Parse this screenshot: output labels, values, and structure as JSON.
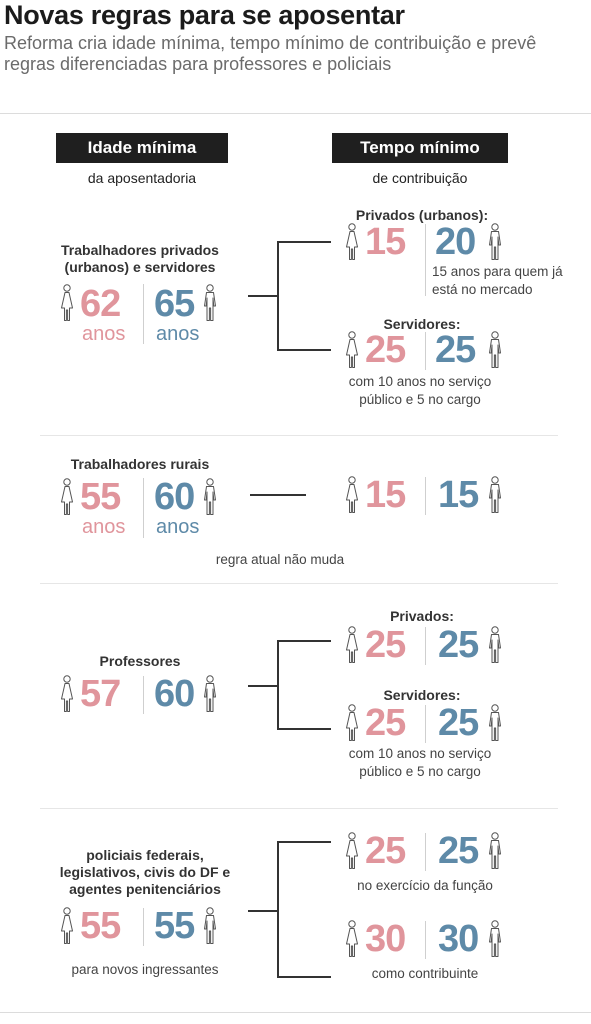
{
  "header": {
    "title": "Novas regras para se aposentar",
    "subtitle": "Reforma cria idade mínima, tempo mínimo de contribuição e prevê regras diferenciadas para professores e policiais"
  },
  "columns": {
    "left_title": "Idade mínima",
    "left_sub": "da aposentadoria",
    "right_title": "Tempo mínimo",
    "right_sub": "de contribuição"
  },
  "colors": {
    "woman": "#e0959c",
    "man": "#5e8aa8"
  },
  "icons": {
    "woman": "woman-icon",
    "man": "man-icon"
  },
  "sections": {
    "privados": {
      "label": "Trabalhadores privados (urbanos) e servidores",
      "age_woman": "62",
      "age_man": "65",
      "unit_woman": "anos",
      "unit_man": "anos",
      "r1_label": "Privados (urbanos):",
      "r1_woman": "15",
      "r1_man": "20",
      "r1_note": "15 anos para quem já está no mercado",
      "r2_label": "Servidores:",
      "r2_woman": "25",
      "r2_man": "25",
      "r2_note": "com 10 anos no serviço público e 5 no cargo"
    },
    "rurais": {
      "label": "Trabalhadores rurais",
      "age_woman": "55",
      "age_man": "60",
      "unit_woman": "anos",
      "unit_man": "anos",
      "r_woman": "15",
      "r_man": "15",
      "note": "regra atual não muda"
    },
    "professores": {
      "label": "Professores",
      "age_woman": "57",
      "age_man": "60",
      "r1_label": "Privados:",
      "r1_woman": "25",
      "r1_man": "25",
      "r2_label": "Servidores:",
      "r2_woman": "25",
      "r2_man": "25",
      "r2_note": "com 10 anos no serviço público e 5 no cargo"
    },
    "policiais": {
      "label": "policiais federais, legislativos, civis do DF e agentes penitenciários",
      "age_woman": "55",
      "age_man": "55",
      "note": "para novos ingressantes",
      "r1_woman": "25",
      "r1_man": "25",
      "r1_note": "no exercício da função",
      "r2_woman": "30",
      "r2_man": "30",
      "r2_note": "como contribuinte"
    }
  }
}
